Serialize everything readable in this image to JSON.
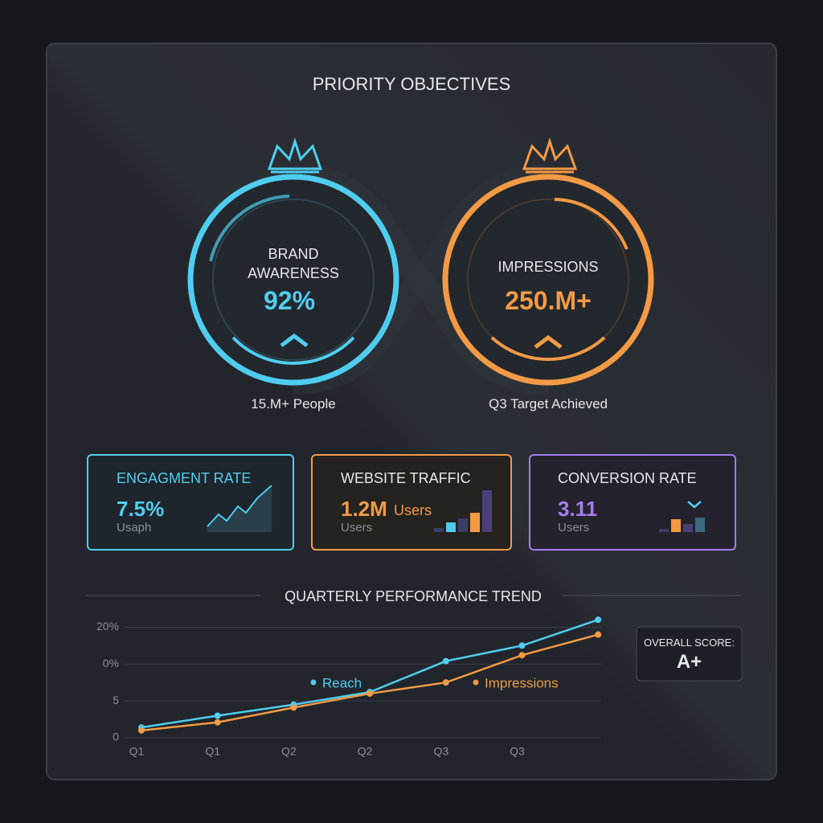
{
  "header": {
    "title": "PRIORITY OBJECTIVES"
  },
  "gauges": [
    {
      "label": "BRAND AWARENESS",
      "value": "92%",
      "caption": "15.M+ People"
    },
    {
      "label": "IMPRESSIONS",
      "value": "250.M+",
      "caption": "Q3 Target Achieved"
    }
  ],
  "cards": [
    {
      "title": "ENGAGMENT RATE",
      "value": "7.5%",
      "sub": "Usaph"
    },
    {
      "title": "WEBSITE TRAFFIC",
      "value": "1.2M",
      "unit": "Users",
      "sub": "Users"
    },
    {
      "title": "CONVERSION RATE",
      "value": "3.11",
      "sub": "Users"
    }
  ],
  "score": {
    "label": "OVERALL SCORE:",
    "value": "A+"
  },
  "chart_data": {
    "type": "line",
    "title": "QUARTERLY PERFORMANCE TREND",
    "categories": [
      "Q1",
      "Q1",
      "Q2",
      "Q2",
      "Q3",
      "Q3",
      null
    ],
    "series": [
      {
        "name": "Reach",
        "color": "#4fcdef",
        "values": [
          1.4,
          3.0,
          4.5,
          6.2,
          10.4,
          12.5,
          16.0
        ]
      },
      {
        "name": "Impressions",
        "color": "#f39a45",
        "values": [
          1.0,
          2.1,
          4.1,
          6.0,
          7.5,
          11.2,
          14.0
        ]
      }
    ],
    "ylim": [
      0,
      17
    ],
    "yticks": [
      0,
      5,
      {
        "value": 10,
        "label": "0%"
      },
      {
        "value": 15,
        "label": "20%"
      }
    ],
    "grid": true
  }
}
